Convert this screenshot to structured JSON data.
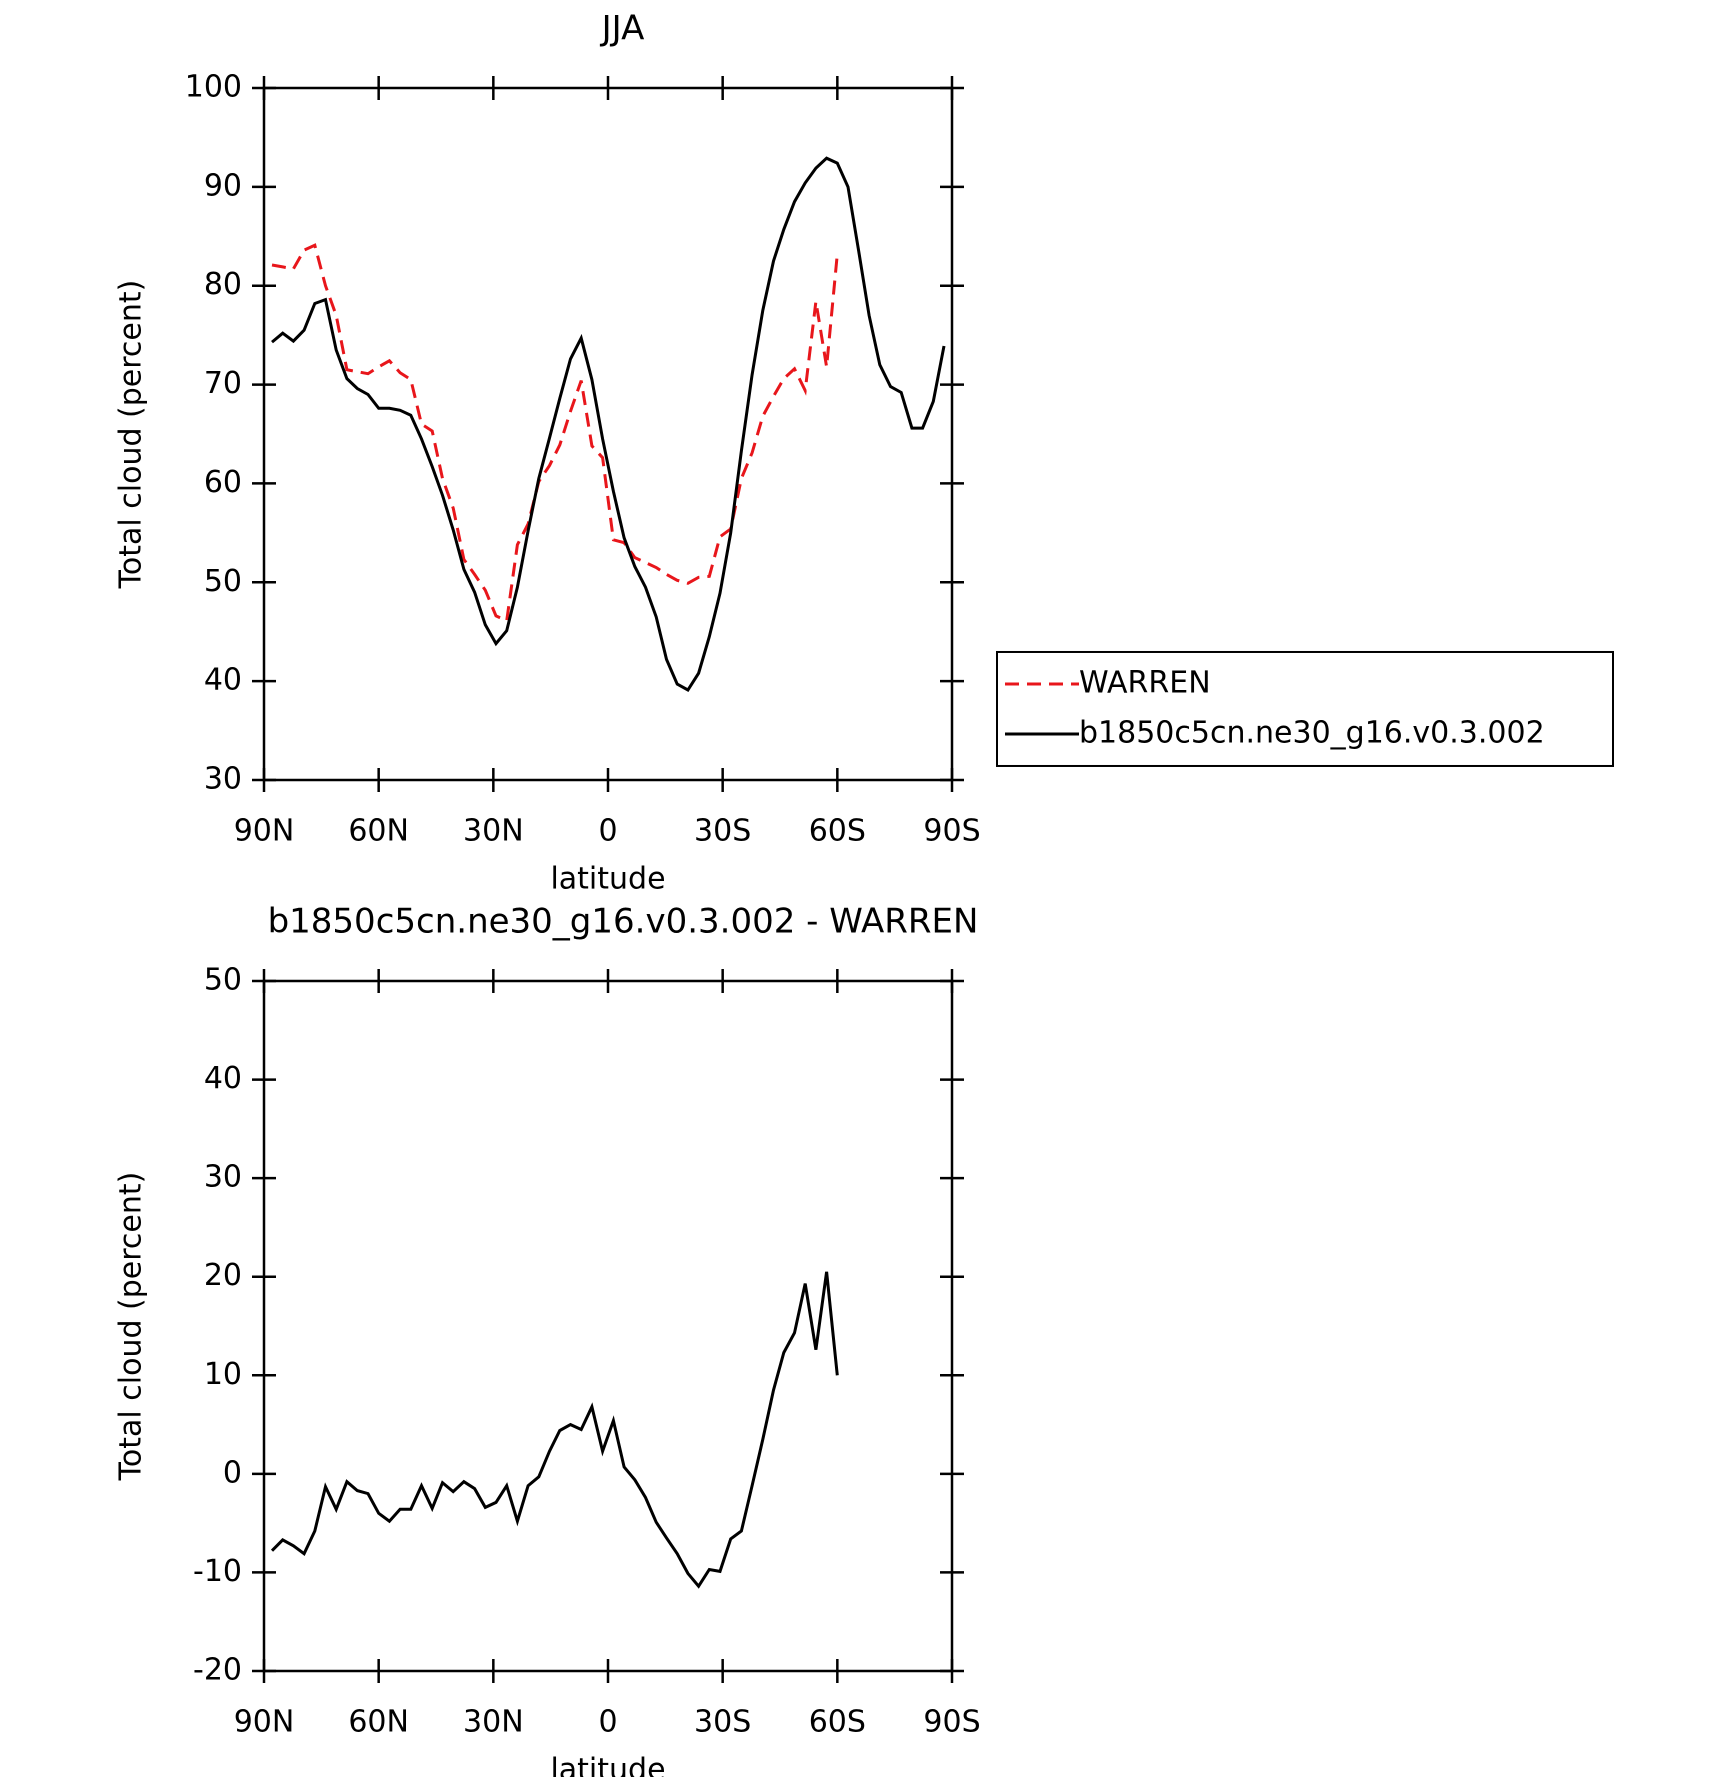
{
  "chart_data": [
    {
      "type": "line",
      "title": "JJA",
      "xlabel": "latitude",
      "ylabel": "Total cloud (percent)",
      "x": [
        87.9,
        85.1,
        82.3,
        79.5,
        76.7,
        73.9,
        71.1,
        68.3,
        65.6,
        62.8,
        60.0,
        57.2,
        54.4,
        51.6,
        48.8,
        46.0,
        43.3,
        40.5,
        37.7,
        34.9,
        32.1,
        29.3,
        26.5,
        23.7,
        20.9,
        18.1,
        15.3,
        12.6,
        9.8,
        7.0,
        4.2,
        1.4,
        -1.4,
        -4.2,
        -7.0,
        -9.8,
        -12.6,
        -15.3,
        -18.1,
        -20.9,
        -23.7,
        -26.5,
        -29.3,
        -32.1,
        -34.9,
        -37.7,
        -40.5,
        -43.3,
        -46.0,
        -48.8,
        -51.6,
        -54.4,
        -57.2,
        -60.0,
        -62.8,
        -65.6,
        -68.3,
        -71.1,
        -73.9,
        -76.7,
        -79.5,
        -82.3,
        -85.1,
        -87.9
      ],
      "series": [
        {
          "name": "WARREN",
          "color": "#e8161b",
          "linestyle": "dashed",
          "values": [
            82.1,
            81.9,
            81.7,
            83.6,
            84.1,
            80.0,
            77.0,
            71.5,
            71.3,
            71.1,
            71.8,
            72.4,
            71.2,
            70.5,
            66.0,
            65.3,
            60.5,
            57.5,
            52.3,
            50.8,
            49.2,
            46.6,
            46.1,
            53.8,
            55.9,
            60.2,
            61.8,
            63.9,
            67.3,
            70.4,
            63.8,
            62.6,
            54.3,
            54.0,
            52.5,
            52.0,
            51.5,
            50.8,
            50.2,
            49.9,
            50.5,
            50.6,
            54.6,
            55.4,
            60.5,
            63.1,
            66.8,
            68.8,
            70.6,
            71.6,
            69.4,
            78.4,
            71.8,
            83.2,
            null,
            null,
            null,
            null,
            null,
            null,
            null,
            null,
            null,
            null
          ]
        },
        {
          "name": "b1850c5cn.ne30_g16.v0.3.002",
          "color": "#000000",
          "linestyle": "solid",
          "values": [
            74.3,
            75.2,
            74.4,
            75.5,
            78.2,
            78.6,
            73.5,
            70.6,
            69.6,
            69.0,
            67.6,
            67.6,
            67.4,
            66.9,
            64.5,
            61.7,
            58.8,
            55.3,
            51.3,
            49.0,
            45.7,
            43.8,
            45.1,
            49.5,
            55.2,
            60.5,
            64.6,
            68.6,
            72.6,
            74.7,
            70.5,
            64.5,
            59.2,
            54.5,
            51.6,
            49.5,
            46.5,
            42.2,
            39.7,
            39.1,
            40.8,
            44.5,
            48.9,
            55.0,
            63.3,
            71.0,
            77.5,
            82.5,
            85.7,
            88.5,
            90.4,
            91.9,
            92.9,
            92.4,
            90.0,
            83.5,
            77.0,
            72.0,
            69.8,
            69.2,
            65.6,
            65.6,
            68.3,
            73.9
          ]
        }
      ],
      "xlim": [
        90,
        -90
      ],
      "xticks": [
        {
          "value": 90,
          "label": "90N"
        },
        {
          "value": 60,
          "label": "60N"
        },
        {
          "value": 30,
          "label": "30N"
        },
        0,
        {
          "value": -30,
          "label": "30S"
        },
        {
          "value": -60,
          "label": "60S"
        },
        {
          "value": -90,
          "label": "90S"
        }
      ],
      "ylim": [
        30,
        100
      ],
      "yticks": [
        30,
        40,
        50,
        60,
        70,
        80,
        90,
        100
      ],
      "legend": "right"
    },
    {
      "type": "line",
      "title": "b1850c5cn.ne30_g16.v0.3.002 - WARREN",
      "xlabel": "latitude",
      "ylabel": "Total cloud (percent)",
      "x": [
        87.9,
        85.1,
        82.3,
        79.5,
        76.7,
        73.9,
        71.1,
        68.3,
        65.6,
        62.8,
        60.0,
        57.2,
        54.4,
        51.6,
        48.8,
        46.0,
        43.3,
        40.5,
        37.7,
        34.9,
        32.1,
        29.3,
        26.5,
        23.7,
        20.9,
        18.1,
        15.3,
        12.6,
        9.8,
        7.0,
        4.2,
        1.4,
        -1.4,
        -4.2,
        -7.0,
        -9.8,
        -12.6,
        -15.3,
        -18.1,
        -20.9,
        -23.7,
        -26.5,
        -29.3,
        -32.1,
        -34.9,
        -37.7,
        -40.5,
        -43.3,
        -46.0,
        -48.8,
        -51.6,
        -54.4,
        -57.2,
        -60.0,
        -62.8,
        -65.6,
        -68.3,
        -71.1,
        -73.9,
        -76.7,
        -79.5,
        -82.3,
        -85.1,
        -87.9
      ],
      "series": [
        {
          "color": "#000000",
          "linestyle": "solid",
          "values": [
            -7.8,
            -6.7,
            -7.3,
            -8.1,
            -5.8,
            -1.3,
            -3.6,
            -0.8,
            -1.7,
            -2.0,
            -4.0,
            -4.8,
            -3.6,
            -3.6,
            -1.2,
            -3.5,
            -0.9,
            -1.8,
            -0.8,
            -1.5,
            -3.4,
            -2.9,
            -1.2,
            -4.8,
            -1.2,
            -0.3,
            2.3,
            4.4,
            5.0,
            4.5,
            6.8,
            2.3,
            5.4,
            0.7,
            -0.6,
            -2.4,
            -4.9,
            -6.5,
            -8.1,
            -10.1,
            -11.4,
            -9.7,
            -9.9,
            -6.6,
            -5.8,
            -1.2,
            3.5,
            8.5,
            12.3,
            14.3,
            19.3,
            12.6,
            20.5,
            10.0,
            null,
            null,
            null,
            null,
            null,
            null,
            null,
            null,
            null,
            null
          ]
        }
      ],
      "xlim": [
        90,
        -90
      ],
      "xticks": [
        {
          "value": 90,
          "label": "90N"
        },
        {
          "value": 60,
          "label": "60N"
        },
        {
          "value": 30,
          "label": "30N"
        },
        0,
        {
          "value": -30,
          "label": "30S"
        },
        {
          "value": -60,
          "label": "60S"
        },
        {
          "value": -90,
          "label": "90S"
        }
      ],
      "ylim": [
        -20,
        50
      ],
      "yticks": [
        -20,
        -10,
        0,
        10,
        20,
        30,
        40,
        50
      ]
    }
  ]
}
